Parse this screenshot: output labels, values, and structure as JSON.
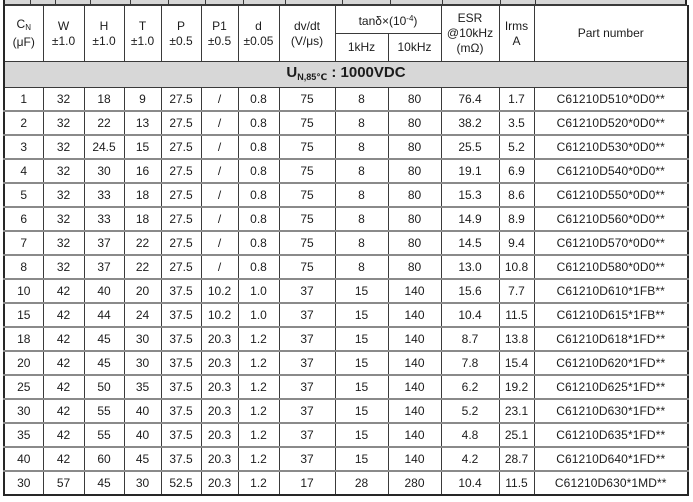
{
  "banner": {
    "symbol": "U",
    "subscript": "N,85℃",
    "separator": " : ",
    "value": "1000VDC"
  },
  "header": {
    "cn": {
      "symbol": "C",
      "sub": "N",
      "unit": "(μF)"
    },
    "w": {
      "label": "W",
      "tol": "±1.0"
    },
    "h": {
      "label": "H",
      "tol": "±1.0"
    },
    "t": {
      "label": "T",
      "tol": "±1.0"
    },
    "p": {
      "label": "P",
      "tol": "±0.5"
    },
    "p1": {
      "label": "P1",
      "tol": "±0.5"
    },
    "d": {
      "label": "d",
      "tol": "±0.05"
    },
    "dvdt": {
      "label": "dv/dt",
      "unit": "(V/μs)"
    },
    "tandelta": {
      "prefix": "tanδ×(10",
      "sup": "-4",
      "suffix": ")",
      "freq1": "1kHz",
      "freq2": "10kHz"
    },
    "esr": {
      "line1": "ESR",
      "line2": "@10kHz",
      "line3": "(mΩ)"
    },
    "irms": {
      "line1": "Irms",
      "line2": "A"
    },
    "part": {
      "label": "Part number"
    }
  },
  "rows": [
    [
      "1",
      "32",
      "18",
      "9",
      "27.5",
      "/",
      "0.8",
      "75",
      "8",
      "80",
      "76.4",
      "1.7",
      "C61210D510*0D0**"
    ],
    [
      "2",
      "32",
      "22",
      "13",
      "27.5",
      "/",
      "0.8",
      "75",
      "8",
      "80",
      "38.2",
      "3.5",
      "C61210D520*0D0**"
    ],
    [
      "3",
      "32",
      "24.5",
      "15",
      "27.5",
      "/",
      "0.8",
      "75",
      "8",
      "80",
      "25.5",
      "5.2",
      "C61210D530*0D0**"
    ],
    [
      "4",
      "32",
      "30",
      "16",
      "27.5",
      "/",
      "0.8",
      "75",
      "8",
      "80",
      "19.1",
      "6.9",
      "C61210D540*0D0**"
    ],
    [
      "5",
      "32",
      "33",
      "18",
      "27.5",
      "/",
      "0.8",
      "75",
      "8",
      "80",
      "15.3",
      "8.6",
      "C61210D550*0D0**"
    ],
    [
      "6",
      "32",
      "33",
      "18",
      "27.5",
      "/",
      "0.8",
      "75",
      "8",
      "80",
      "14.9",
      "8.9",
      "C61210D560*0D0**"
    ],
    [
      "7",
      "32",
      "37",
      "22",
      "27.5",
      "/",
      "0.8",
      "75",
      "8",
      "80",
      "14.5",
      "9.4",
      "C61210D570*0D0**"
    ],
    [
      "8",
      "32",
      "37",
      "22",
      "27.5",
      "/",
      "0.8",
      "75",
      "8",
      "80",
      "13.0",
      "10.8",
      "C61210D580*0D0**"
    ],
    [
      "10",
      "42",
      "40",
      "20",
      "37.5",
      "10.2",
      "1.0",
      "37",
      "15",
      "140",
      "15.6",
      "7.7",
      "C61210D610*1FB**"
    ],
    [
      "15",
      "42",
      "44",
      "24",
      "37.5",
      "10.2",
      "1.0",
      "37",
      "15",
      "140",
      "10.4",
      "11.5",
      "C61210D615*1FB**"
    ],
    [
      "18",
      "42",
      "45",
      "30",
      "37.5",
      "20.3",
      "1.2",
      "37",
      "15",
      "140",
      "8.7",
      "13.8",
      "C61210D618*1FD**"
    ],
    [
      "20",
      "42",
      "45",
      "30",
      "37.5",
      "20.3",
      "1.2",
      "37",
      "15",
      "140",
      "7.8",
      "15.4",
      "C61210D620*1FD**"
    ],
    [
      "25",
      "42",
      "50",
      "35",
      "37.5",
      "20.3",
      "1.2",
      "37",
      "15",
      "140",
      "6.2",
      "19.2",
      "C61210D625*1FD**"
    ],
    [
      "30",
      "42",
      "55",
      "40",
      "37.5",
      "20.3",
      "1.2",
      "37",
      "15",
      "140",
      "5.2",
      "23.1",
      "C61210D630*1FD**"
    ],
    [
      "35",
      "42",
      "55",
      "40",
      "37.5",
      "20.3",
      "1.2",
      "37",
      "15",
      "140",
      "4.8",
      "25.1",
      "C61210D635*1FD**"
    ],
    [
      "40",
      "42",
      "60",
      "45",
      "37.5",
      "20.3",
      "1.2",
      "37",
      "15",
      "140",
      "4.2",
      "28.7",
      "C61210D640*1FD**"
    ],
    [
      "30",
      "57",
      "45",
      "30",
      "52.5",
      "20.3",
      "1.2",
      "17",
      "28",
      "280",
      "10.4",
      "11.5",
      "C61210D630*1MD**"
    ]
  ],
  "remnant_line_offsets": [
    25,
    50,
    85,
    125,
    163,
    200,
    238,
    280,
    337,
    385,
    437,
    495,
    530
  ]
}
